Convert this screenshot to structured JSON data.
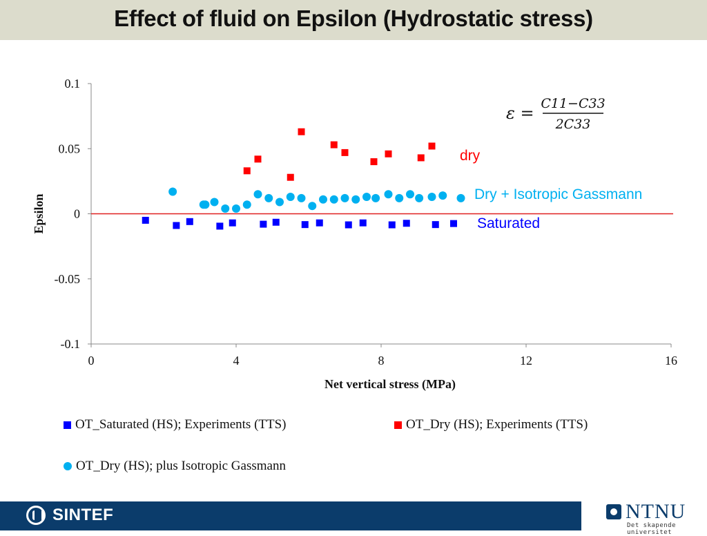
{
  "slide": {
    "title": "Effect of fluid on Epsilon (Hydrostatic stress)"
  },
  "colors": {
    "saturated": "#0000ff",
    "dry": "#ff0000",
    "gassmann": "#00b0f0",
    "zero_line": "#e02020",
    "title_bg": "#dcdccc",
    "footer_bg": "#0b3c6b"
  },
  "chart_data": {
    "type": "scatter",
    "xlabel": "Net vertical stress (MPa)",
    "ylabel": "Epsilon",
    "xlim": [
      0,
      16
    ],
    "ylim": [
      -0.1,
      0.1
    ],
    "x_ticks": [
      "0",
      "4",
      "8",
      "12",
      "16"
    ],
    "y_ticks": [
      "0.1",
      "0.05",
      "0",
      "-0.05",
      "-0.1"
    ],
    "grid": false,
    "legend_position": "bottom",
    "zero_line": true,
    "equation": {
      "lhs": "ε =",
      "numerator": "C11−C33",
      "denominator": "2C33"
    },
    "annotations": [
      {
        "text": "dry",
        "color": "#ff0000"
      },
      {
        "text": "Dry + Isotropic Gassmann",
        "color": "#00b0f0"
      },
      {
        "text": "Saturated",
        "color": "#0000ff"
      }
    ],
    "series": [
      {
        "name": "OT_Saturated (HS); Experiments (TTS)",
        "marker": "square",
        "color": "#0000ff",
        "points": [
          [
            1.5,
            -0.005
          ],
          [
            2.35,
            -0.009
          ],
          [
            2.72,
            -0.006
          ],
          [
            3.55,
            -0.0095
          ],
          [
            3.9,
            -0.007
          ],
          [
            4.75,
            -0.008
          ],
          [
            5.1,
            -0.0065
          ],
          [
            5.9,
            -0.0083
          ],
          [
            6.3,
            -0.007
          ],
          [
            7.1,
            -0.0085
          ],
          [
            7.5,
            -0.007
          ],
          [
            8.3,
            -0.0085
          ],
          [
            8.7,
            -0.0073
          ],
          [
            9.5,
            -0.0083
          ],
          [
            10.0,
            -0.0075
          ]
        ]
      },
      {
        "name": "OT_Dry (HS); Experiments (TTS)",
        "marker": "square",
        "color": "#ff0000",
        "points": [
          [
            4.3,
            0.033
          ],
          [
            4.6,
            0.042
          ],
          [
            5.5,
            0.028
          ],
          [
            5.8,
            0.063
          ],
          [
            6.7,
            0.053
          ],
          [
            7.0,
            0.047
          ],
          [
            7.8,
            0.04
          ],
          [
            8.2,
            0.046
          ],
          [
            9.1,
            0.043
          ],
          [
            9.4,
            0.052
          ]
        ]
      },
      {
        "name": "OT_Dry (HS); plus Isotropic Gassmann",
        "marker": "circle",
        "color": "#00b0f0",
        "points": [
          [
            2.25,
            0.017
          ],
          [
            3.1,
            0.007
          ],
          [
            3.15,
            0.007
          ],
          [
            3.4,
            0.009
          ],
          [
            3.7,
            0.004
          ],
          [
            4.0,
            0.004
          ],
          [
            4.3,
            0.007
          ],
          [
            4.6,
            0.015
          ],
          [
            4.9,
            0.012
          ],
          [
            5.2,
            0.009
          ],
          [
            5.5,
            0.013
          ],
          [
            5.8,
            0.012
          ],
          [
            6.1,
            0.006
          ],
          [
            6.4,
            0.011
          ],
          [
            6.7,
            0.011
          ],
          [
            7.0,
            0.012
          ],
          [
            7.3,
            0.011
          ],
          [
            7.6,
            0.013
          ],
          [
            7.85,
            0.012
          ],
          [
            8.2,
            0.015
          ],
          [
            8.5,
            0.012
          ],
          [
            8.8,
            0.015
          ],
          [
            9.05,
            0.012
          ],
          [
            9.4,
            0.013
          ],
          [
            9.7,
            0.014
          ],
          [
            10.2,
            0.012
          ]
        ]
      }
    ]
  },
  "footer": {
    "left_logo": "SINTEF",
    "right_logo": "NTNU",
    "right_tagline": "Det skapende universitet"
  }
}
